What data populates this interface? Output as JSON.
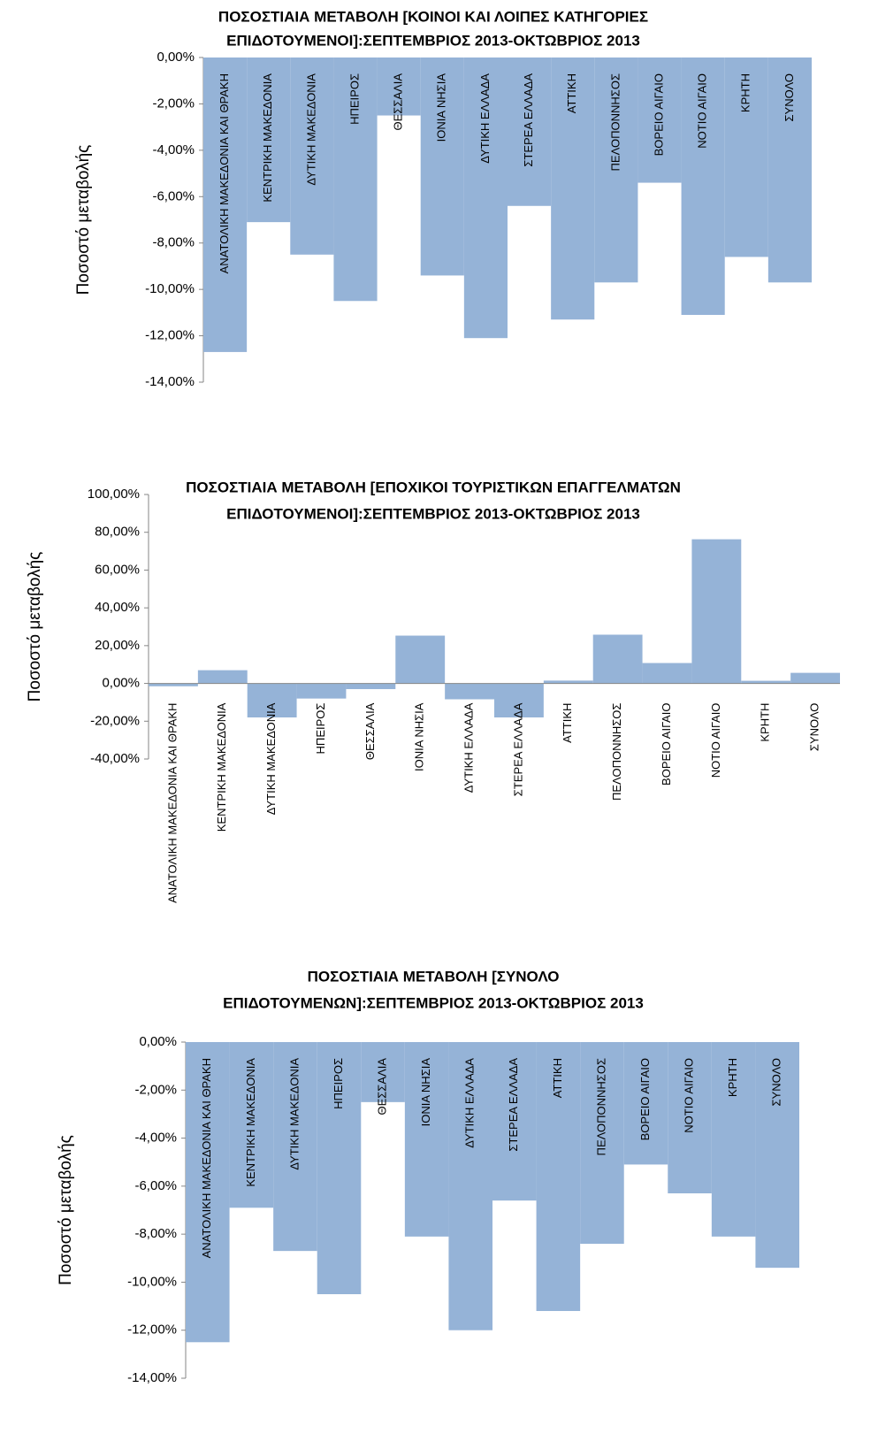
{
  "chart_data": [
    {
      "type": "bar",
      "title": [
        "ΠΟΣΟΣΤΙΑΙΑ ΜΕΤΑΒΟΛΗ [ΚΟΙΝΟΙ ΚΑΙ ΛΟΙΠΕΣ ΚΑΤΗΓΟΡΙΕΣ",
        "ΕΠΙΔΟΤΟΥΜΕΝΟΙ]:ΣΕΠΤΕΜΒΡΙΟΣ 2013-ΟΚΤΩΒΡΙΟΣ 2013"
      ],
      "y_label": "Ποσοστό μεταβολής",
      "categories": [
        "ΑΝΑΤΟΛΙΚΗ ΜΑΚΕΔΟΝΙΑ ΚΑΙ ΘΡΑΚΗ",
        "ΚΕΝΤΡΙΚΗ ΜΑΚΕΔΟΝΙΑ",
        "ΔΥΤΙΚΗ ΜΑΚΕΔΟΝΙΑ",
        "ΗΠΕΙΡΟΣ",
        "ΘΕΣΣΑΛΙΑ",
        "ΙΟΝΙΑ ΝΗΣΙΑ",
        "ΔΥΤΙΚΗ ΕΛΛΑΔΑ",
        "ΣΤΕΡΕΑ ΕΛΛΑΔΑ",
        "ΑΤΤΙΚΗ",
        "ΠΕΛΟΠΟΝΝΗΣΟΣ",
        "ΒΟΡΕΙΟ ΑΙΓΑΙΟ",
        "ΝΟΤΙΟ ΑΙΓΑΙΟ",
        "ΚΡΗΤΗ",
        "ΣΥΝΟΛΟ"
      ],
      "values": [
        -12.7,
        -7.1,
        -8.5,
        -10.5,
        -2.5,
        -9.4,
        -12.1,
        -6.4,
        -11.3,
        -9.7,
        -5.4,
        -11.1,
        -8.6,
        -9.7
      ],
      "color": "#95b3d7",
      "ylim": [
        -14,
        0
      ],
      "yticks": [
        {
          "value": -14,
          "label": "-14,00%"
        },
        {
          "value": -12,
          "label": "-12,00%"
        },
        {
          "value": -10,
          "label": "-10,00%"
        },
        {
          "value": -8,
          "label": "-8,00%"
        },
        {
          "value": -6,
          "label": "-6,00%"
        },
        {
          "value": -4,
          "label": "-4,00%"
        },
        {
          "value": -2,
          "label": "-2,00%"
        },
        {
          "value": 0,
          "label": "0,00%"
        }
      ]
    },
    {
      "type": "bar",
      "title": [
        "ΠΟΣΟΣΤΙΑΙΑ ΜΕΤΑΒΟΛΗ [ΕΠΟΧΙΚΟΙ ΤΟΥΡΙΣΤΙΚΩΝ ΕΠΑΓΓΕΛΜΑΤΩΝ",
        "ΕΠΙΔΟΤΟΥΜΕΝΟΙ]:ΣΕΠΤΕΜΒΡΙΟΣ 2013-ΟΚΤΩΒΡΙΟΣ 2013"
      ],
      "y_label": "Ποσοστό μεταβολής",
      "categories": [
        "ΑΝΑΤΟΛΙΚΗ ΜΑΚΕΔΟΝΙΑ ΚΑΙ ΘΡΑΚΗ",
        "ΚΕΝΤΡΙΚΗ ΜΑΚΕΔΟΝΙΑ",
        "ΔΥΤΙΚΗ ΜΑΚΕΔΟΝΙΑ",
        "ΗΠΕΙΡΟΣ",
        "ΘΕΣΣΑΛΙΑ",
        "ΙΟΝΙΑ ΝΗΣΙΑ",
        "ΔΥΤΙΚΗ ΕΛΛΑΔΑ",
        "ΣΤΕΡΕΑ ΕΛΛΑΔΑ",
        "ΑΤΤΙΚΗ",
        "ΠΕΛΟΠΟΝΝΗΣΟΣ",
        "ΒΟΡΕΙΟ ΑΙΓΑΙΟ",
        "ΝΟΤΙΟ ΑΙΓΑΙΟ",
        "ΚΡΗΤΗ",
        "ΣΥΝΟΛΟ"
      ],
      "values": [
        -1.5,
        7,
        -18,
        -8,
        -3,
        25.3,
        -8.4,
        -18,
        1.5,
        25.8,
        10.8,
        76.3,
        1.4,
        5.6
      ],
      "color": "#95b3d7",
      "ylim": [
        -40,
        100
      ],
      "yticks": [
        {
          "value": -40,
          "label": "-40,00%"
        },
        {
          "value": -20,
          "label": "-20,00%"
        },
        {
          "value": 0,
          "label": "0,00%"
        },
        {
          "value": 20,
          "label": "20,00%"
        },
        {
          "value": 40,
          "label": "40,00%"
        },
        {
          "value": 60,
          "label": "60,00%"
        },
        {
          "value": 80,
          "label": "80,00%"
        },
        {
          "value": 100,
          "label": "100,00%"
        }
      ]
    },
    {
      "type": "bar",
      "title": [
        "ΠΟΣΟΣΤΙΑΙΑ ΜΕΤΑΒΟΛΗ [ΣΥΝΟΛΟ",
        "ΕΠΙΔΟΤΟΥΜΕΝΩΝ]:ΣΕΠΤΕΜΒΡΙΟΣ 2013-ΟΚΤΩΒΡΙΟΣ 2013"
      ],
      "y_label": "Ποσοστό μεταβολής",
      "categories": [
        "ΑΝΑΤΟΛΙΚΗ ΜΑΚΕΔΟΝΙΑ ΚΑΙ ΘΡΑΚΗ",
        "ΚΕΝΤΡΙΚΗ ΜΑΚΕΔΟΝΙΑ",
        "ΔΥΤΙΚΗ ΜΑΚΕΔΟΝΙΑ",
        "ΗΠΕΙΡΟΣ",
        "ΘΕΣΣΑΛΙΑ",
        "ΙΟΝΙΑ ΝΗΣΙΑ",
        "ΔΥΤΙΚΗ ΕΛΛΑΔΑ",
        "ΣΤΕΡΕΑ ΕΛΛΑΔΑ",
        "ΑΤΤΙΚΗ",
        "ΠΕΛΟΠΟΝΝΗΣΟΣ",
        "ΒΟΡΕΙΟ ΑΙΓΑΙΟ",
        "ΝΟΤΙΟ ΑΙΓΑΙΟ",
        "ΚΡΗΤΗ",
        "ΣΥΝΟΛΟ"
      ],
      "values": [
        -12.5,
        -6.9,
        -8.7,
        -10.5,
        -2.5,
        -8.1,
        -12.0,
        -6.6,
        -11.2,
        -8.4,
        -5.1,
        -6.3,
        -8.1,
        -9.4
      ],
      "color": "#95b3d7",
      "ylim": [
        -14,
        0
      ],
      "yticks": [
        {
          "value": -14,
          "label": "-14,00%"
        },
        {
          "value": -12,
          "label": "-12,00%"
        },
        {
          "value": -10,
          "label": "-10,00%"
        },
        {
          "value": -8,
          "label": "-8,00%"
        },
        {
          "value": -6,
          "label": "-6,00%"
        },
        {
          "value": -4,
          "label": "-4,00%"
        },
        {
          "value": -2,
          "label": "-2,00%"
        },
        {
          "value": 0,
          "label": "0,00%"
        }
      ]
    }
  ]
}
